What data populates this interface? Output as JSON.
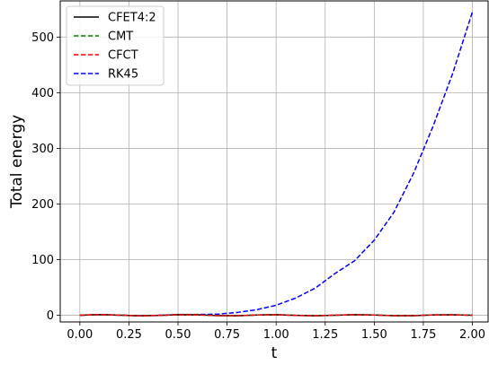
{
  "chart_data": {
    "type": "line",
    "title": "",
    "xlabel": "t",
    "ylabel": "Total energy",
    "xlim": [
      -0.1,
      2.08
    ],
    "ylim": [
      -12,
      565
    ],
    "grid": true,
    "legend_position": "top-left",
    "x_ticks": [
      0.0,
      0.25,
      0.5,
      0.75,
      1.0,
      1.25,
      1.5,
      1.75,
      2.0
    ],
    "x_tick_labels": [
      "0.00",
      "0.25",
      "0.50",
      "0.75",
      "1.00",
      "1.25",
      "1.50",
      "1.75",
      "2.00"
    ],
    "y_ticks": [
      0,
      100,
      200,
      300,
      400,
      500
    ],
    "y_tick_labels": [
      "0",
      "100",
      "200",
      "300",
      "400",
      "500"
    ],
    "series": [
      {
        "name": "CFET4:2",
        "color": "#000000",
        "dash": "solid",
        "x": [
          0.0,
          0.1,
          0.2,
          0.3,
          0.4,
          0.5,
          0.6,
          0.7,
          0.8,
          0.9,
          1.0,
          1.1,
          1.2,
          1.3,
          1.4,
          1.5,
          1.6,
          1.7,
          1.8,
          1.9,
          2.0
        ],
        "y": [
          0.0,
          1.2,
          0.3,
          -0.9,
          -0.4,
          1.0,
          0.8,
          -0.6,
          -0.9,
          0.4,
          1.1,
          -0.2,
          -1.0,
          0.1,
          1.0,
          0.5,
          -0.7,
          -0.8,
          0.6,
          0.9,
          0.0
        ]
      },
      {
        "name": "CMT",
        "color": "#008000",
        "dash": "dashed",
        "x": [
          0.0,
          0.1,
          0.2,
          0.3,
          0.4,
          0.5,
          0.6,
          0.7,
          0.8,
          0.9,
          1.0,
          1.1,
          1.2,
          1.3,
          1.4,
          1.5,
          1.6,
          1.7,
          1.8,
          1.9,
          2.0
        ],
        "y": [
          0.0,
          1.2,
          0.3,
          -0.9,
          -0.4,
          1.0,
          0.8,
          -0.6,
          -0.9,
          0.4,
          1.1,
          -0.2,
          -1.0,
          0.1,
          1.0,
          0.5,
          -0.7,
          -0.8,
          0.6,
          0.9,
          0.0
        ]
      },
      {
        "name": "CFCT",
        "color": "#ff0000",
        "dash": "dashed",
        "x": [
          0.0,
          0.1,
          0.2,
          0.3,
          0.4,
          0.5,
          0.6,
          0.7,
          0.8,
          0.9,
          1.0,
          1.1,
          1.2,
          1.3,
          1.4,
          1.5,
          1.6,
          1.7,
          1.8,
          1.9,
          2.0
        ],
        "y": [
          0.0,
          1.3,
          0.2,
          -1.0,
          -0.3,
          1.1,
          0.7,
          -0.7,
          -0.8,
          0.5,
          1.0,
          -0.3,
          -0.9,
          0.2,
          1.1,
          0.4,
          -0.8,
          -0.7,
          0.7,
          0.8,
          0.0
        ]
      },
      {
        "name": "RK45",
        "color": "#0000ff",
        "dash": "dashed",
        "x": [
          0.0,
          0.1,
          0.2,
          0.3,
          0.4,
          0.5,
          0.6,
          0.7,
          0.8,
          0.9,
          1.0,
          1.1,
          1.2,
          1.3,
          1.4,
          1.5,
          1.6,
          1.7,
          1.8,
          1.9,
          2.0
        ],
        "y": [
          0.0,
          1.0,
          0.2,
          -0.8,
          0.0,
          1.5,
          1.5,
          2.0,
          5.0,
          10.0,
          18.0,
          31.0,
          49.0,
          75.0,
          98.0,
          135.0,
          185.0,
          255.0,
          340.0,
          435.0,
          545.0
        ]
      }
    ]
  }
}
